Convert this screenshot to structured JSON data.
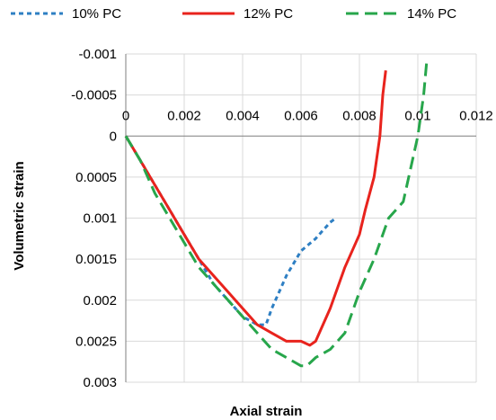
{
  "chart_data": {
    "type": "line",
    "title": "",
    "xlabel": "Axial strain",
    "ylabel": "Volumetric strain",
    "xlim": [
      0,
      0.012
    ],
    "ylim": [
      -0.001,
      0.003
    ],
    "y_inverted": true,
    "grid": true,
    "legend_position": "top",
    "x_ticks": [
      {
        "value": 0,
        "label": "0"
      },
      {
        "value": 0.002,
        "label": "0.002"
      },
      {
        "value": 0.004,
        "label": "0.004"
      },
      {
        "value": 0.006,
        "label": "0.006"
      },
      {
        "value": 0.008,
        "label": "0.008"
      },
      {
        "value": 0.01,
        "label": "0.01"
      },
      {
        "value": 0.012,
        "label": "0.012"
      }
    ],
    "y_ticks": [
      {
        "value": -0.001,
        "label": "-0.001"
      },
      {
        "value": -0.0005,
        "label": "-0.0005"
      },
      {
        "value": 0,
        "label": "0"
      },
      {
        "value": 0.0005,
        "label": "0.0005"
      },
      {
        "value": 0.001,
        "label": "0.001"
      },
      {
        "value": 0.0015,
        "label": "0.0015"
      },
      {
        "value": 0.002,
        "label": "0.002"
      },
      {
        "value": 0.0025,
        "label": "0.0025"
      },
      {
        "value": 0.003,
        "label": "0.003"
      }
    ],
    "series": [
      {
        "name": "10% PC",
        "color": "#2e7fc3",
        "dash": "short-dash",
        "x": [
          0,
          0.0005,
          0.001,
          0.0015,
          0.002,
          0.0025,
          0.003,
          0.0035,
          0.004,
          0.0045,
          0.0048,
          0.005,
          0.0055,
          0.006,
          0.0065,
          0.007,
          0.0072
        ],
        "y": [
          0,
          0.0003,
          0.0006,
          0.0009,
          0.0012,
          0.0015,
          0.0018,
          0.002,
          0.0022,
          0.0023,
          0.0023,
          0.0021,
          0.0017,
          0.0014,
          0.00125,
          0.00105,
          0.001
        ]
      },
      {
        "name": "12% PC",
        "color": "#e8231d",
        "dash": "solid",
        "x": [
          0,
          0.0005,
          0.001,
          0.0015,
          0.002,
          0.0025,
          0.003,
          0.0035,
          0.004,
          0.0045,
          0.005,
          0.0055,
          0.006,
          0.0063,
          0.0065,
          0.007,
          0.0075,
          0.008,
          0.0082,
          0.0085,
          0.0087,
          0.0088,
          0.0089
        ],
        "y": [
          0,
          0.0003,
          0.0006,
          0.0009,
          0.0012,
          0.0015,
          0.0017,
          0.0019,
          0.0021,
          0.0023,
          0.0024,
          0.0025,
          0.0025,
          0.00255,
          0.0025,
          0.0021,
          0.0016,
          0.0012,
          0.0009,
          0.0005,
          0,
          -0.0005,
          -0.0008
        ]
      },
      {
        "name": "14% PC",
        "color": "#27a64b",
        "dash": "long-dash",
        "x": [
          0,
          0.0005,
          0.001,
          0.0015,
          0.002,
          0.0025,
          0.003,
          0.0035,
          0.004,
          0.0045,
          0.005,
          0.0055,
          0.006,
          0.0062,
          0.0065,
          0.007,
          0.0075,
          0.008,
          0.0085,
          0.009,
          0.0095,
          0.01,
          0.0102,
          0.0103
        ],
        "y": [
          0,
          0.0003,
          0.0007,
          0.001,
          0.0013,
          0.0016,
          0.0018,
          0.002,
          0.0022,
          0.0024,
          0.0026,
          0.0027,
          0.0028,
          0.0028,
          0.0027,
          0.0026,
          0.0024,
          0.0019,
          0.0015,
          0.001,
          0.0008,
          0,
          -0.0005,
          -0.0009
        ]
      }
    ]
  }
}
